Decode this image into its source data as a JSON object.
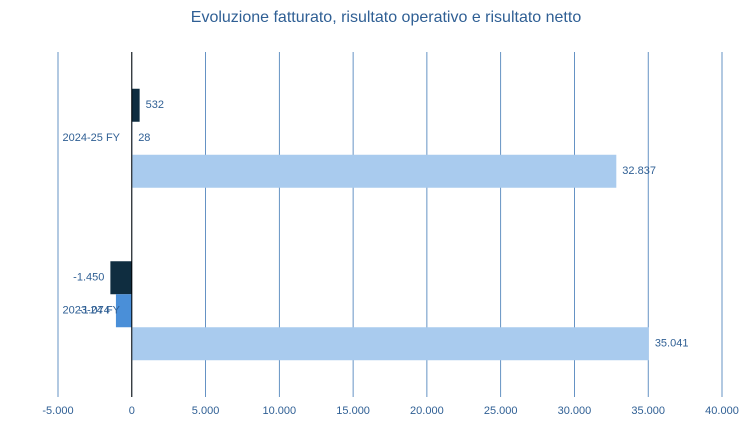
{
  "chart_data": {
    "type": "hbar",
    "title": "Evoluzione fatturato, risultato operativo e risultato netto",
    "categories": [
      "2023-24 FY",
      "2024-25 FY"
    ],
    "series": [
      {
        "color": "#0f2d40",
        "values": [
          -1450,
          532
        ],
        "value_labels": [
          "-1.450",
          "532"
        ]
      },
      {
        "color": "#4a8fd8",
        "values": [
          -1074,
          28
        ],
        "value_labels": [
          "-1.074",
          "28"
        ]
      },
      {
        "color": "#a9cbee",
        "values": [
          35041,
          32837
        ],
        "value_labels": [
          "35.041",
          "32.837"
        ]
      }
    ],
    "xlim": [
      -5000,
      40000
    ],
    "xticks": [
      {
        "value": -5000,
        "label": "-5.000"
      },
      0,
      {
        "value": 5000,
        "label": "5.000"
      },
      {
        "value": 10000,
        "label": "10.000"
      },
      {
        "value": 15000,
        "label": "15.000"
      },
      {
        "value": 20000,
        "label": "20.000"
      },
      {
        "value": 25000,
        "label": "25.000"
      },
      {
        "value": 30000,
        "label": "30.000"
      },
      {
        "value": 35000,
        "label": "35.000"
      },
      {
        "value": 40000,
        "label": "40.000"
      }
    ],
    "grid": true
  }
}
